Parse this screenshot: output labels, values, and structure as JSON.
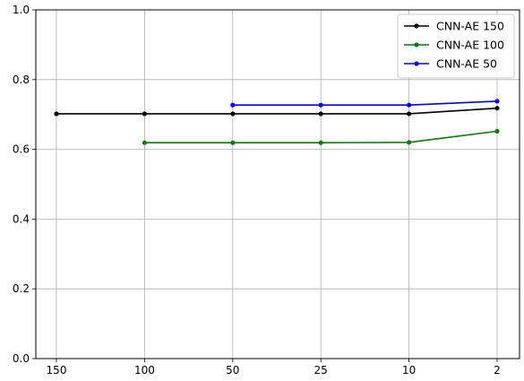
{
  "chart_data": {
    "type": "line",
    "title": "",
    "xlabel": "",
    "ylabel": "",
    "categories": [
      "150",
      "100",
      "50",
      "25",
      "10",
      "2"
    ],
    "ylim": [
      0,
      1.0
    ],
    "yticks": [
      "0.0",
      "0.2",
      "0.4",
      "0.6",
      "0.8",
      "1.0"
    ],
    "grid": true,
    "legend": "top-right",
    "series": [
      {
        "name": "CNN-AE 150",
        "color": "#000000",
        "values": [
          0.702,
          0.702,
          0.702,
          0.702,
          0.702,
          0.718
        ]
      },
      {
        "name": "CNN-AE 100",
        "color": "#008000",
        "values": [
          null,
          0.619,
          0.619,
          0.619,
          0.62,
          0.652
        ]
      },
      {
        "name": "CNN-AE 50",
        "color": "#0000ff",
        "values": [
          null,
          null,
          0.727,
          0.727,
          0.727,
          0.738
        ]
      }
    ]
  }
}
